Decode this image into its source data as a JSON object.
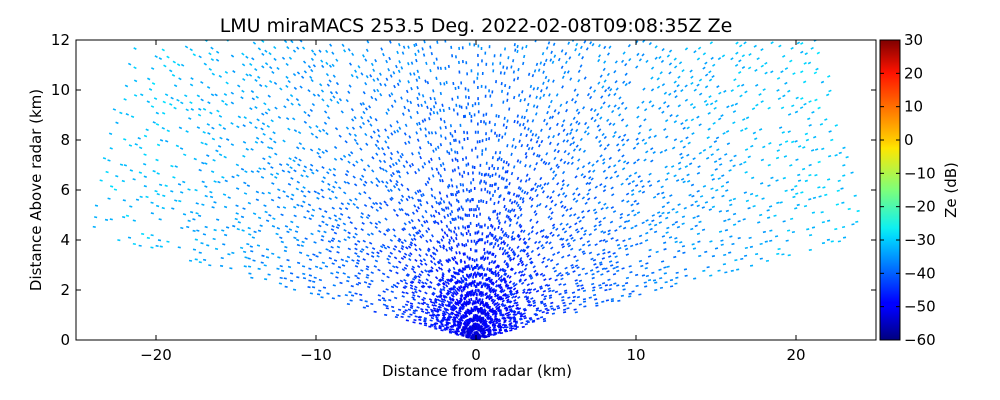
{
  "chart_data": {
    "type": "heatmap",
    "title": "LMU miraMACS 253.5 Deg. 2022-02-08T09:08:35Z  Ze",
    "xlabel": "Distance from radar (km)",
    "ylabel": "Distance Above radar  (km)",
    "xlim": [
      -25,
      25
    ],
    "ylim": [
      0,
      12
    ],
    "x_ticks": [
      "−20",
      "−10",
      "0",
      "10",
      "20"
    ],
    "x_tick_values": [
      -20,
      -10,
      0,
      10,
      20
    ],
    "y_ticks": [
      "0",
      "2",
      "4",
      "6",
      "8",
      "10",
      "12"
    ],
    "y_tick_values": [
      0,
      2,
      4,
      6,
      8,
      10,
      12
    ],
    "colorbar": {
      "label": "Ze (dB)",
      "range": [
        -60,
        30
      ],
      "ticks": [
        "−60",
        "−50",
        "−40",
        "−30",
        "−20",
        "−10",
        "0",
        "10",
        "20",
        "30"
      ],
      "tick_values": [
        -60,
        -50,
        -40,
        -30,
        -20,
        -10,
        0,
        10,
        20,
        30
      ],
      "colormap": "jet"
    },
    "scan": {
      "max_range_km": 24.5,
      "min_elevation_deg": 10,
      "max_elevation_deg": 170
    },
    "field": {
      "ze_at_radar_dB": -56,
      "ze_at_max_range_dB": -30,
      "ze_noise_floor_dB": -31
    },
    "grid": false,
    "legend": "colorbar-right"
  }
}
